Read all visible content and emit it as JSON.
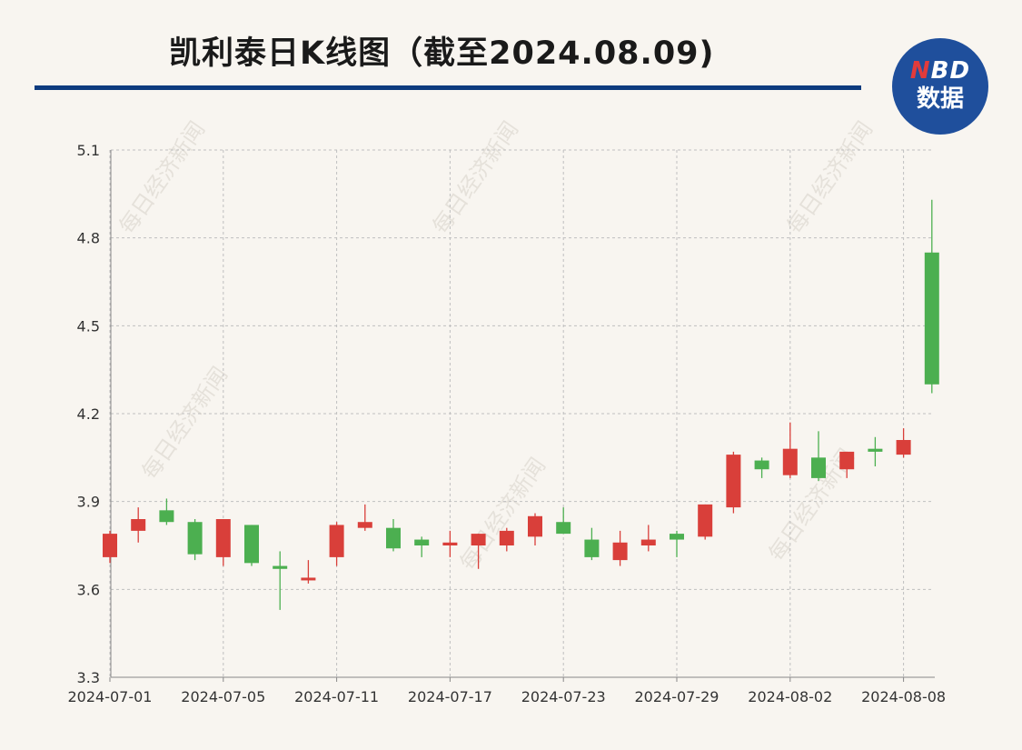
{
  "title": "凯利泰日K线图（截至2024.08.09)",
  "logo": {
    "brand_n": "N",
    "brand_rest": "BD",
    "sub": "数据"
  },
  "watermark": "每日经济新闻",
  "colors": {
    "up": "#d93f3a",
    "down": "#4caf50",
    "grid": "#bfbfbf",
    "axis": "#888888",
    "title_rule": "#0d3b7e",
    "logo_bg": "#1f4f9c"
  },
  "chart_data": {
    "type": "candlestick",
    "ylim": [
      3.3,
      5.1
    ],
    "yticks": [
      3.3,
      3.6,
      3.9,
      4.2,
      4.5,
      4.8,
      5.1
    ],
    "xtick_labels": [
      "2024-07-01",
      "2024-07-05",
      "2024-07-11",
      "2024-07-17",
      "2024-07-23",
      "2024-07-29",
      "2024-08-02",
      "2024-08-08"
    ],
    "xtick_indices": [
      0,
      4,
      8,
      12,
      16,
      20,
      24,
      28
    ],
    "grid": true,
    "candles": [
      {
        "o": 3.71,
        "h": 3.8,
        "l": 3.69,
        "c": 3.79
      },
      {
        "o": 3.8,
        "h": 3.88,
        "l": 3.76,
        "c": 3.84
      },
      {
        "o": 3.87,
        "h": 3.91,
        "l": 3.82,
        "c": 3.83
      },
      {
        "o": 3.83,
        "h": 3.84,
        "l": 3.7,
        "c": 3.72
      },
      {
        "o": 3.71,
        "h": 3.84,
        "l": 3.68,
        "c": 3.84
      },
      {
        "o": 3.82,
        "h": 3.82,
        "l": 3.68,
        "c": 3.69
      },
      {
        "o": 3.68,
        "h": 3.73,
        "l": 3.53,
        "c": 3.67
      },
      {
        "o": 3.64,
        "h": 3.7,
        "l": 3.62,
        "c": 3.64
      },
      {
        "o": 3.71,
        "h": 3.83,
        "l": 3.68,
        "c": 3.82
      },
      {
        "o": 3.81,
        "h": 3.89,
        "l": 3.8,
        "c": 3.83
      },
      {
        "o": 3.81,
        "h": 3.84,
        "l": 3.73,
        "c": 3.74
      },
      {
        "o": 3.77,
        "h": 3.78,
        "l": 3.71,
        "c": 3.75
      },
      {
        "o": 3.75,
        "h": 3.8,
        "l": 3.71,
        "c": 3.76
      },
      {
        "o": 3.75,
        "h": 3.79,
        "l": 3.67,
        "c": 3.79
      },
      {
        "o": 3.75,
        "h": 3.81,
        "l": 3.73,
        "c": 3.8
      },
      {
        "o": 3.78,
        "h": 3.86,
        "l": 3.75,
        "c": 3.85
      },
      {
        "o": 3.83,
        "h": 3.88,
        "l": 3.79,
        "c": 3.79
      },
      {
        "o": 3.77,
        "h": 3.81,
        "l": 3.7,
        "c": 3.71
      },
      {
        "o": 3.7,
        "h": 3.8,
        "l": 3.68,
        "c": 3.76
      },
      {
        "o": 3.75,
        "h": 3.82,
        "l": 3.73,
        "c": 3.77
      },
      {
        "o": 3.79,
        "h": 3.8,
        "l": 3.71,
        "c": 3.77
      },
      {
        "o": 3.78,
        "h": 3.89,
        "l": 3.77,
        "c": 3.89
      },
      {
        "o": 3.88,
        "h": 4.07,
        "l": 3.86,
        "c": 4.06
      },
      {
        "o": 4.04,
        "h": 4.05,
        "l": 3.98,
        "c": 4.01
      },
      {
        "o": 3.99,
        "h": 4.17,
        "l": 3.98,
        "c": 4.08
      },
      {
        "o": 4.05,
        "h": 4.14,
        "l": 3.97,
        "c": 3.98
      },
      {
        "o": 4.01,
        "h": 4.07,
        "l": 3.98,
        "c": 4.07
      },
      {
        "o": 4.08,
        "h": 4.12,
        "l": 4.02,
        "c": 4.07
      },
      {
        "o": 4.06,
        "h": 4.15,
        "l": 4.05,
        "c": 4.11
      },
      {
        "o": 4.75,
        "h": 4.93,
        "l": 4.27,
        "c": 4.3
      }
    ]
  }
}
